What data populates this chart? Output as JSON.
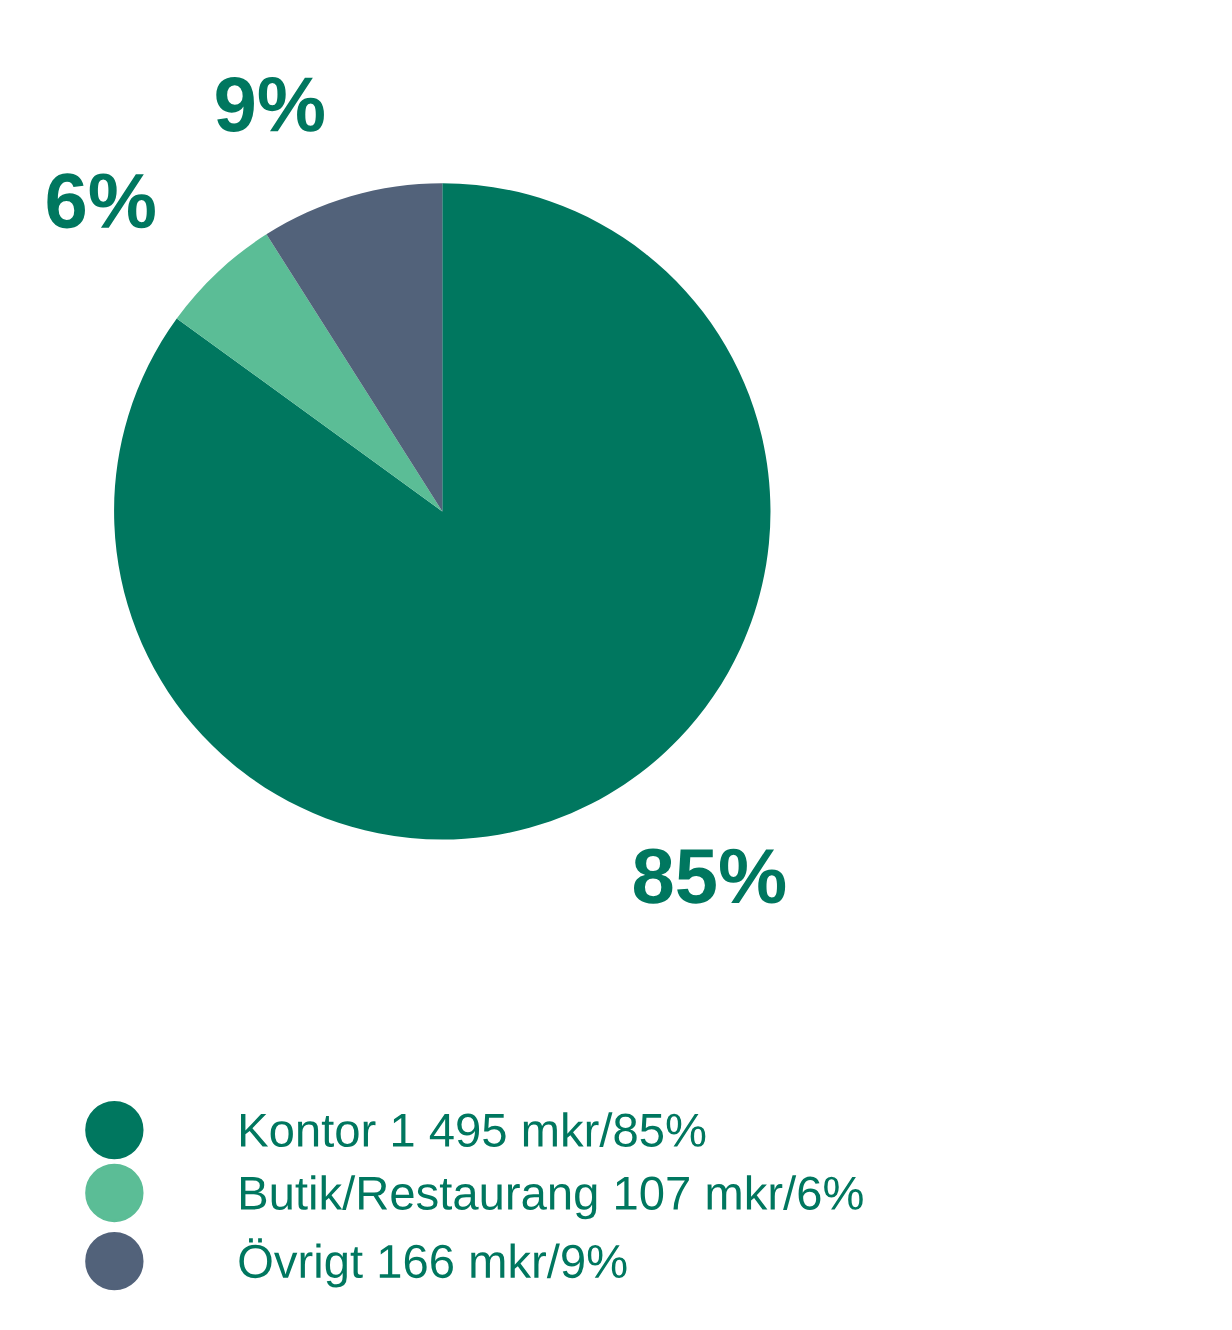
{
  "chart_data": {
    "type": "pie",
    "categories": [
      "Kontor 1 495 mkr/85%",
      "Butik/Restaurang 107 mkr/6%",
      "Övrigt 166 mkr/9%"
    ],
    "values": [
      85,
      6,
      9
    ],
    "value_labels": [
      "85%",
      "6%",
      "9%"
    ],
    "colors": [
      "#00775f",
      "#5bbd96",
      "#52627a"
    ],
    "legend": "bottom left"
  }
}
